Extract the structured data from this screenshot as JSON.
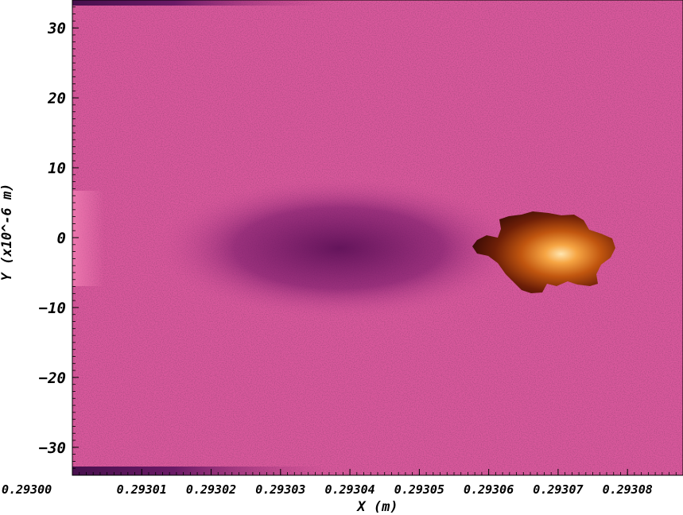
{
  "chart_data": {
    "type": "heatmap",
    "title": "",
    "xlabel": "X (m)",
    "ylabel": "Y (x10^-6 m)",
    "xlim": [
      0.293,
      0.293088
    ],
    "ylim": [
      -34,
      34
    ],
    "x_ticks": [
      {
        "value": 0.293,
        "label": "0.29300"
      },
      {
        "value": 0.29301,
        "label": "0.29301"
      },
      {
        "value": 0.29302,
        "label": "0.29302"
      },
      {
        "value": 0.29303,
        "label": "0.29303"
      },
      {
        "value": 0.29304,
        "label": "0.29304"
      },
      {
        "value": 0.29305,
        "label": "0.29305"
      },
      {
        "value": 0.29306,
        "label": "0.29306"
      },
      {
        "value": 0.29307,
        "label": "0.29307"
      },
      {
        "value": 0.29308,
        "label": "0.29308"
      }
    ],
    "y_ticks": [
      {
        "value": 30,
        "label": "30"
      },
      {
        "value": 20,
        "label": "20"
      },
      {
        "value": 10,
        "label": "10"
      },
      {
        "value": 0,
        "label": "0"
      },
      {
        "value": -10,
        "label": "−10"
      },
      {
        "value": -20,
        "label": "−20"
      },
      {
        "value": -30,
        "label": "−30"
      }
    ],
    "colormap": {
      "background": "#d9589c",
      "depletion": "#5e1158",
      "edge_band": "#47104d",
      "bright_edge": "#ee7ab0",
      "hot_core": "#ffd48a",
      "hot_mid": "#e07a1c",
      "hot_outer": "#3d0c06"
    },
    "features": [
      {
        "kind": "depletion-wake",
        "x_range": [
          0.29301,
          0.29306
        ],
        "y_center": -1.5,
        "y_halfwidth": 7
      },
      {
        "kind": "dense-blob",
        "x_center": 0.29307,
        "y_center": -1,
        "x_extent": [
          0.293058,
          0.293078
        ],
        "y_extent": [
          -8,
          3.5
        ]
      }
    ],
    "grid": false,
    "legend": "none"
  }
}
